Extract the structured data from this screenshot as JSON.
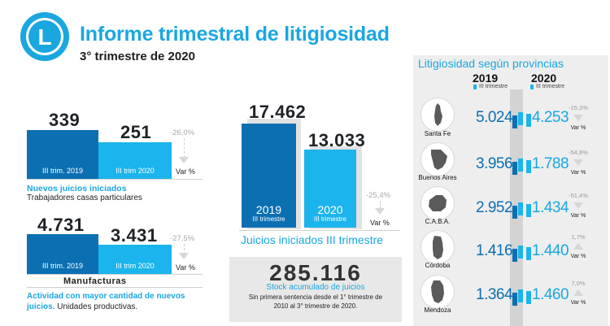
{
  "header": {
    "logo_letter": "L",
    "title": "Informe trimestral de litigiosidad",
    "subtitle": "3° trimestre de 2020"
  },
  "chart_data": [
    {
      "type": "bar",
      "categories": [
        "III trim. 2019",
        "III trim 2020"
      ],
      "values": [
        339,
        251
      ],
      "value_labels": [
        "339",
        "251"
      ],
      "variation": "-26,0%",
      "variation_label": "Var %",
      "caption_highlight": "Nuevos juicios iniciados",
      "caption": "Trabajadores casas particulares",
      "colors": [
        "#0b6fb2",
        "#1cb4ec"
      ]
    },
    {
      "type": "bar",
      "categories": [
        "III trim. 2019",
        "III trim 2020"
      ],
      "values": [
        4731,
        3431
      ],
      "value_labels": [
        "4.731",
        "3.431"
      ],
      "variation": "-27,5%",
      "variation_label": "Var %",
      "heading": "Manufacturas",
      "caption_highlight": "Actividad con mayor cantidad de nuevos juicios.",
      "caption": "Unidades productivas.",
      "colors": [
        "#0b6fb2",
        "#1cb4ec"
      ]
    },
    {
      "type": "bar",
      "categories": [
        "2019",
        "2020"
      ],
      "category_sub": [
        "III trimestre",
        "III trimestre"
      ],
      "values": [
        17462,
        13033
      ],
      "value_labels": [
        "17.462",
        "13.033"
      ],
      "variation": "-25,4%",
      "variation_label": "Var %",
      "title": "Juicios iniciados III trimestre",
      "colors": [
        "#0b6fb2",
        "#1cb4ec"
      ]
    },
    {
      "type": "table",
      "title": "Litigiosidad según provincias",
      "columns": [
        {
          "year": "2019",
          "sub": "III trimestre"
        },
        {
          "year": "2020",
          "sub": "III trimestre"
        }
      ],
      "rows": [
        {
          "province": "Santa Fe",
          "v2019": "5.024",
          "v2020": "4.253",
          "variation": "-15,3%",
          "direction": "down"
        },
        {
          "province": "Buenos Aires",
          "v2019": "3.956",
          "v2020": "1.788",
          "variation": "-54,8%",
          "direction": "down"
        },
        {
          "province": "C.A.B.A.",
          "v2019": "2.952",
          "v2020": "1.434",
          "variation": "-51,4%",
          "direction": "down"
        },
        {
          "province": "Córdoba",
          "v2019": "1.416",
          "v2020": "1.440",
          "variation": "1,7%",
          "direction": "up"
        },
        {
          "province": "Mendoza",
          "v2019": "1.364",
          "v2020": "1.460",
          "variation": "7,0%",
          "direction": "up"
        }
      ],
      "variation_label": "Var %"
    }
  ],
  "stock": {
    "value": "285.116",
    "label": "Stock acumulado de juicios",
    "description_line1": "Sin primera sentencia desde el 1° trimestre de",
    "description_line2": "2010 al 3° trimestre de 2020."
  },
  "colors": {
    "accent": "#1aa7e0",
    "dark_blue": "#0b6fb2",
    "light_blue": "#1cb4ec"
  }
}
